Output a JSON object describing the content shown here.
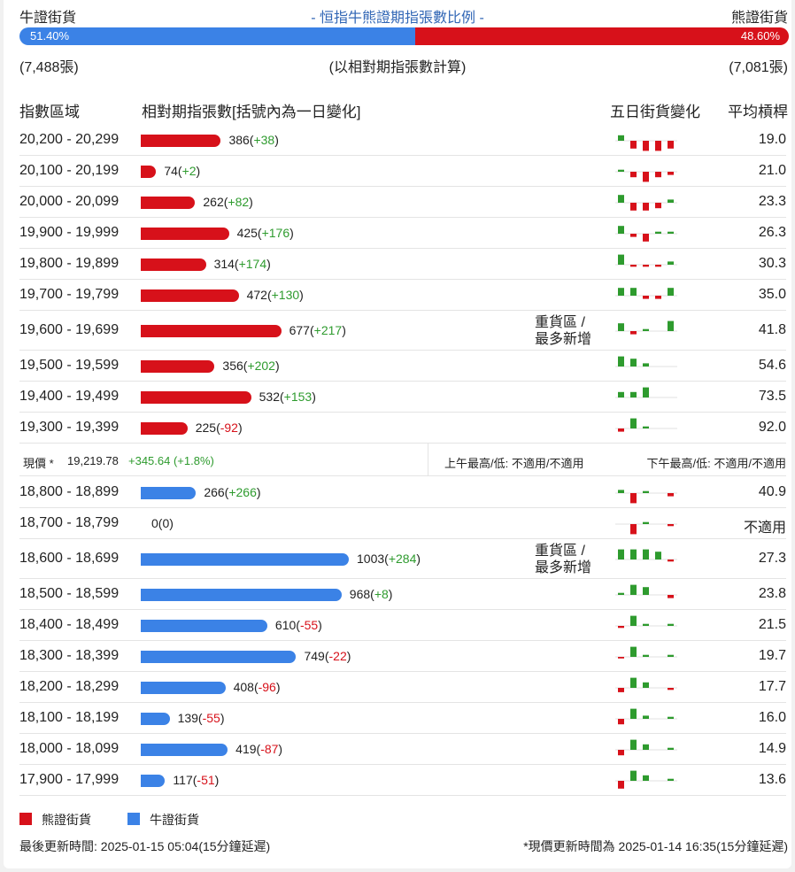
{
  "header": {
    "bull_label": "牛證街貨",
    "title": "- 恒指牛熊證期指張數比例 -",
    "bear_label": "熊證街貨",
    "bull_pct": "51.40%",
    "bear_pct": "48.60%",
    "bull_count": "(7,488張)",
    "note": "(以相對期指張數計算)",
    "bear_count": "(7,081張)"
  },
  "columns": {
    "range": "指數區域",
    "contracts": "相對期指張數[括號內為一日變化]",
    "five_day": "五日街貨變化",
    "leverage": "平均槓桿"
  },
  "heavy_label_line1": "重貨區 /",
  "heavy_label_line2": "最多新增",
  "bear_rows": [
    {
      "range": "20,200 - 20,299",
      "count": "386",
      "change": "+38",
      "avg": "19.0",
      "heavy": false,
      "spark": [
        2,
        -3,
        -4,
        -4,
        -3
      ]
    },
    {
      "range": "20,100 - 20,199",
      "count": "74",
      "change": "+2",
      "avg": "21.0",
      "heavy": false,
      "spark": [
        0.5,
        -2,
        -4,
        -2,
        -1
      ]
    },
    {
      "range": "20,000 - 20,099",
      "count": "262",
      "change": "+82",
      "avg": "23.3",
      "heavy": false,
      "spark": [
        3,
        -3,
        -3,
        -2,
        1
      ]
    },
    {
      "range": "19,900 - 19,999",
      "count": "425",
      "change": "+176",
      "avg": "26.3",
      "heavy": false,
      "spark": [
        3,
        -1,
        -3,
        0.5,
        0.5
      ]
    },
    {
      "range": "19,800 - 19,899",
      "count": "314",
      "change": "+174",
      "avg": "30.3",
      "heavy": false,
      "spark": [
        4,
        -0.5,
        -0.5,
        -0.5,
        1
      ]
    },
    {
      "range": "19,700 - 19,799",
      "count": "472",
      "change": "+130",
      "avg": "35.0",
      "heavy": false,
      "spark": [
        3,
        3,
        -1,
        -1,
        3
      ]
    },
    {
      "range": "19,600 - 19,699",
      "count": "677",
      "change": "+217",
      "avg": "41.8",
      "heavy": true,
      "spark": [
        3,
        -1,
        0.5,
        0,
        4
      ]
    },
    {
      "range": "19,500 - 19,599",
      "count": "356",
      "change": "+202",
      "avg": "54.6",
      "heavy": false,
      "spark": [
        4,
        3,
        1,
        0,
        0
      ]
    },
    {
      "range": "19,400 - 19,499",
      "count": "532",
      "change": "+153",
      "avg": "73.5",
      "heavy": false,
      "spark": [
        2,
        2,
        4,
        0,
        0
      ]
    },
    {
      "range": "19,300 - 19,399",
      "count": "225",
      "change": "-92",
      "avg": "92.0",
      "heavy": false,
      "spark": [
        -1,
        4,
        0.5,
        0,
        0
      ]
    }
  ],
  "price_row": {
    "label": "現價 *",
    "price": "19,219.78",
    "change": "+345.64 (+1.8%)",
    "am": "上午最高/低: 不適用/不適用",
    "pm": "下午最高/低: 不適用/不適用"
  },
  "bull_rows": [
    {
      "range": "18,800 - 18,899",
      "count": "266",
      "change": "+266",
      "avg": "40.9",
      "heavy": false,
      "spark": [
        1,
        -4,
        0.5,
        0,
        -1
      ]
    },
    {
      "range": "18,700 - 18,799",
      "count": "0",
      "change": "0",
      "avg": "不適用",
      "heavy": false,
      "spark": [
        0,
        -4,
        0.5,
        0,
        -0.5
      ]
    },
    {
      "range": "18,600 - 18,699",
      "count": "1003",
      "change": "+284",
      "avg": "27.3",
      "heavy": true,
      "spark": [
        4,
        4,
        4,
        3,
        -0.5
      ]
    },
    {
      "range": "18,500 - 18,599",
      "count": "968",
      "change": "+8",
      "avg": "23.8",
      "heavy": false,
      "spark": [
        0.5,
        4,
        3,
        0,
        -1
      ]
    },
    {
      "range": "18,400 - 18,499",
      "count": "610",
      "change": "-55",
      "avg": "21.5",
      "heavy": false,
      "spark": [
        -0.5,
        4,
        0.5,
        0,
        0.5
      ]
    },
    {
      "range": "18,300 - 18,399",
      "count": "749",
      "change": "-22",
      "avg": "19.7",
      "heavy": false,
      "spark": [
        -0.3,
        4,
        0.5,
        0,
        0.5
      ]
    },
    {
      "range": "18,200 - 18,299",
      "count": "408",
      "change": "-96",
      "avg": "17.7",
      "heavy": false,
      "spark": [
        -1.5,
        4,
        2,
        0,
        -0.5
      ]
    },
    {
      "range": "18,100 - 18,199",
      "count": "139",
      "change": "-55",
      "avg": "16.0",
      "heavy": false,
      "spark": [
        -2,
        4,
        1,
        0,
        0.5
      ]
    },
    {
      "range": "18,000 - 18,099",
      "count": "419",
      "change": "-87",
      "avg": "14.9",
      "heavy": false,
      "spark": [
        -2,
        4,
        2,
        0,
        0.5
      ]
    },
    {
      "range": "17,900 - 17,999",
      "count": "117",
      "change": "-51",
      "avg": "13.6",
      "heavy": false,
      "spark": [
        -3,
        4,
        2,
        0,
        0.5
      ]
    }
  ],
  "legend": {
    "bear": "熊證街貨",
    "bull": "牛證街貨"
  },
  "footer": {
    "updated": "最後更新時間: 2025-01-15 05:04(15分鐘延遲)",
    "price_updated": "*現價更新時間為 2025-01-14 16:35(15分鐘延遲)"
  },
  "colors": {
    "bear": "#d7111a",
    "bull": "#3b82e6",
    "positive": "#2e9b2e",
    "title": "#3166b5"
  }
}
